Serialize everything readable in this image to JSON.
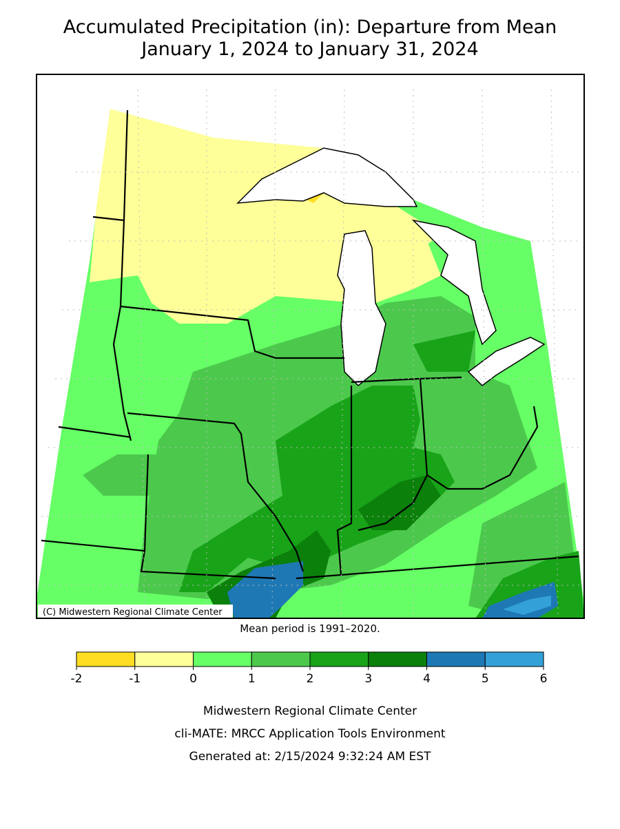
{
  "title": [
    "Accumulated Precipitation (in): Departure from Mean",
    "January 1, 2024 to January 31, 2024"
  ],
  "map": {
    "credit": "(C) Midwestern Regional Climate Center",
    "note": "Mean period is 1991–2020."
  },
  "legend": {
    "ticks": [
      -2,
      -1,
      0,
      1,
      2,
      3,
      4,
      5,
      6
    ],
    "colors": [
      "#ffdd22",
      "#ffff99",
      "#66ff66",
      "#4cc94c",
      "#19a319",
      "#0b800b",
      "#1e78b4",
      "#33a0d8"
    ]
  },
  "footer": [
    "Midwestern Regional Climate Center",
    "cli-MATE: MRCC Application Tools Environment",
    "Generated at: 2/15/2024 9:32:24 AM EST"
  ]
}
